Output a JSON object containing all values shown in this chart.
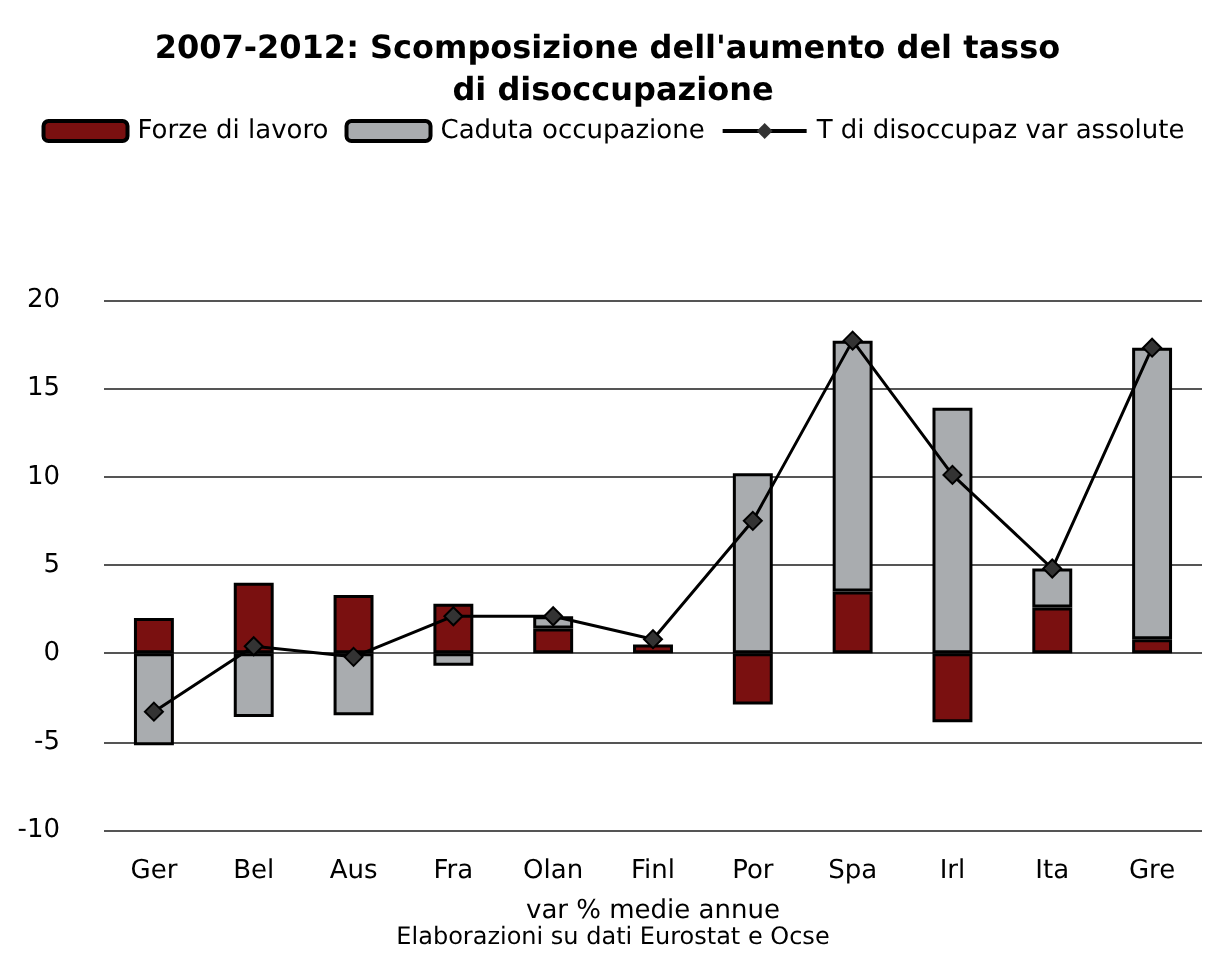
{
  "chart_data": {
    "type": "bar",
    "title": "2007-2012: Scomposizione dell'aumento del tasso di disoccupazione",
    "xlabel": "var % medie annue",
    "annotations": [
      "Elaborazioni su dati Eurostat e Ocse"
    ],
    "categories": [
      "Ger",
      "Bel",
      "Aus",
      "Fra",
      "Olan",
      "Finl",
      "Por",
      "Spa",
      "Irl",
      "Ita",
      "Gre"
    ],
    "stacked": true,
    "series": [
      {
        "name": "Forze di lavoro",
        "color": "#7a1010",
        "values": [
          2.0,
          4.0,
          3.3,
          2.8,
          1.4,
          0.5,
          -2.9,
          3.5,
          -3.9,
          2.6,
          0.8
        ]
      },
      {
        "name": "Caduta occupazione",
        "color": "#a9acaf",
        "values": [
          -5.2,
          -3.6,
          -3.5,
          -0.7,
          0.7,
          null,
          10.2,
          14.2,
          13.9,
          2.2,
          16.5
        ]
      },
      {
        "name": "T di disoccupaz var assolute",
        "type": "line",
        "color": "#000000",
        "marker": "diamond",
        "values": [
          -3.3,
          0.4,
          -0.2,
          2.1,
          2.1,
          0.8,
          7.5,
          17.7,
          10.1,
          4.8,
          17.3
        ]
      }
    ],
    "ylim": [
      -10,
      20
    ],
    "yticks": [
      -10,
      -5,
      0,
      5,
      10,
      15,
      20
    ],
    "grid": "y",
    "legend": "top"
  }
}
